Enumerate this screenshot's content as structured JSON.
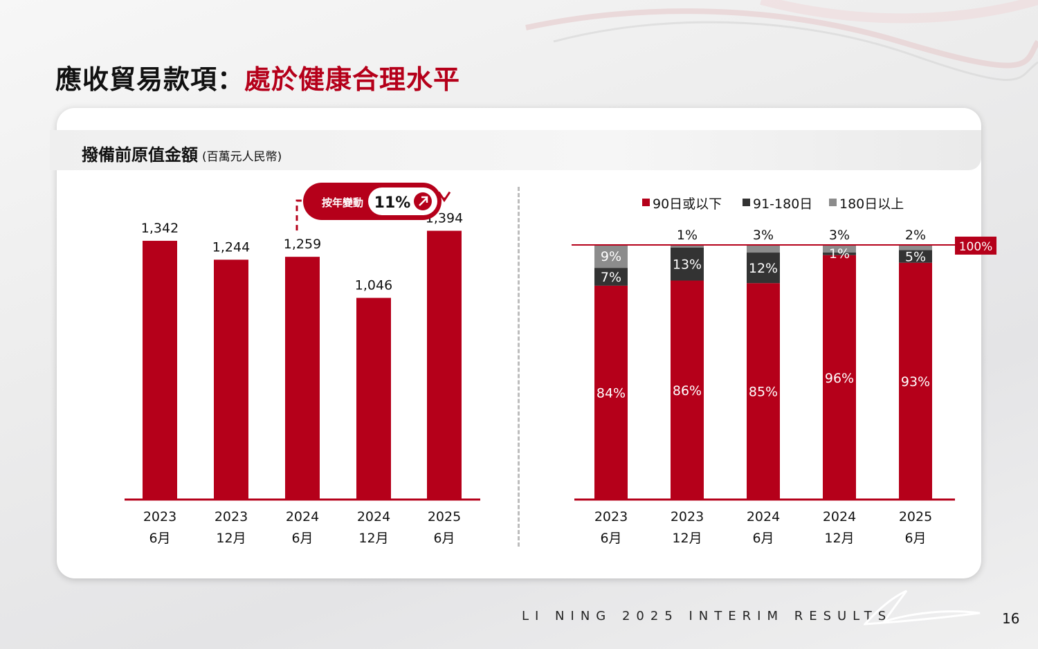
{
  "slide": {
    "title_black": "應收貿易款項：",
    "title_red": "處於健康合理水平",
    "subtitle": "撥備前原值金額",
    "subtitle_unit": "(百萬元人民幣)",
    "footer": "LI NING 2025 INTERIM RESULTS",
    "page_number": "16",
    "logo": "li-ning-logo"
  },
  "colors": {
    "accent": "#b5001a",
    "dark": "#333333",
    "grey": "#8c8c8c"
  },
  "chart_data": [
    {
      "type": "bar",
      "title": "撥備前原值金額",
      "unit": "百萬元人民幣",
      "categories": [
        {
          "year": "2023",
          "period": "6月"
        },
        {
          "year": "2023",
          "period": "12月"
        },
        {
          "year": "2024",
          "period": "6月"
        },
        {
          "year": "2024",
          "period": "12月"
        },
        {
          "year": "2025",
          "period": "6月"
        }
      ],
      "values": [
        1342,
        1244,
        1259,
        1046,
        1394
      ],
      "value_labels": [
        "1,342",
        "1,244",
        "1,259",
        "1,046",
        "1,394"
      ],
      "ylim": [
        0,
        1500
      ],
      "annotation": {
        "label": "按年變動",
        "value": "11%",
        "direction": "up",
        "from_index": 2,
        "to_index": 4
      }
    },
    {
      "type": "stacked_bar_100",
      "categories": [
        {
          "year": "2023",
          "period": "6月"
        },
        {
          "year": "2023",
          "period": "12月"
        },
        {
          "year": "2024",
          "period": "6月"
        },
        {
          "year": "2024",
          "period": "12月"
        },
        {
          "year": "2025",
          "period": "6月"
        }
      ],
      "series": [
        {
          "name": "90日或以下",
          "values": [
            84,
            86,
            85,
            96,
            93
          ],
          "labels": [
            "84%",
            "86%",
            "85%",
            "96%",
            "93%"
          ]
        },
        {
          "name": "91-180日",
          "values": [
            7,
            13,
            12,
            1,
            5
          ],
          "labels": [
            "7%",
            "13%",
            "12%",
            "1%",
            "5%"
          ]
        },
        {
          "name": "180日以上",
          "values": [
            9,
            1,
            3,
            3,
            2
          ],
          "labels": [
            "9%",
            "1%",
            "3%",
            "3%",
            "2%"
          ]
        }
      ],
      "reference_line": {
        "value": 100,
        "label": "100%"
      },
      "legend": "top-right"
    }
  ]
}
